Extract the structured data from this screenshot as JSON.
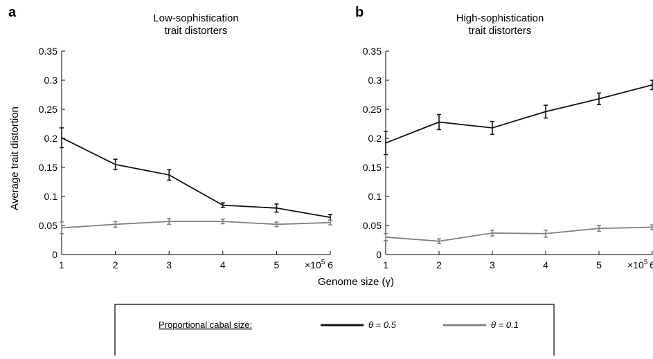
{
  "figure": {
    "ylabel": "Average trait distortion",
    "xlabel": "Genome size (γ)",
    "x_multiplier_base": "×10",
    "x_multiplier_exp": "5",
    "legend": {
      "title": "Proportional cabal size:",
      "entries": [
        {
          "label": "θ = 0.5",
          "color": "#111111"
        },
        {
          "label": "θ = 0.1",
          "color": "#808080"
        }
      ]
    }
  },
  "chart_data": [
    {
      "panel": "a",
      "type": "line",
      "title_lines": [
        "Low-sophistication",
        "trait distorters"
      ],
      "x": [
        1,
        2,
        3,
        4,
        5,
        6
      ],
      "xlim": [
        1,
        6
      ],
      "ylim": [
        0,
        0.35
      ],
      "xticks": [
        "1",
        "2",
        "3",
        "4",
        "5",
        "6"
      ],
      "yticks": [
        "0",
        "0.05",
        "0.1",
        "0.15",
        "0.2",
        "0.25",
        "0.3",
        "0.35"
      ],
      "ytick_values": [
        0,
        0.05,
        0.1,
        0.15,
        0.2,
        0.25,
        0.3,
        0.35
      ],
      "grid": false,
      "series": [
        {
          "name": "θ = 0.5",
          "color": "#111111",
          "values": [
            0.201,
            0.155,
            0.137,
            0.085,
            0.08,
            0.064
          ],
          "err": [
            0.017,
            0.009,
            0.009,
            0.004,
            0.007,
            0.005
          ]
        },
        {
          "name": "θ = 0.1",
          "color": "#808080",
          "values": [
            0.046,
            0.052,
            0.057,
            0.057,
            0.052,
            0.055
          ],
          "err": [
            0.01,
            0.005,
            0.005,
            0.004,
            0.004,
            0.004
          ]
        }
      ]
    },
    {
      "panel": "b",
      "type": "line",
      "title_lines": [
        "High-sophistication",
        "trait distorters"
      ],
      "x": [
        1,
        2,
        3,
        4,
        5,
        6
      ],
      "xlim": [
        1,
        6
      ],
      "ylim": [
        0,
        0.35
      ],
      "xticks": [
        "1",
        "2",
        "3",
        "4",
        "5",
        "6"
      ],
      "yticks": [
        "0",
        "0.05",
        "0.1",
        "0.15",
        "0.2",
        "0.25",
        "0.3",
        "0.35"
      ],
      "ytick_values": [
        0,
        0.05,
        0.1,
        0.15,
        0.2,
        0.25,
        0.3,
        0.35
      ],
      "grid": false,
      "series": [
        {
          "name": "θ = 0.5",
          "color": "#111111",
          "values": [
            0.192,
            0.228,
            0.218,
            0.246,
            0.268,
            0.292
          ],
          "err": [
            0.02,
            0.013,
            0.011,
            0.011,
            0.01,
            0.008
          ]
        },
        {
          "name": "θ = 0.1",
          "color": "#808080",
          "values": [
            0.03,
            0.023,
            0.037,
            0.036,
            0.045,
            0.047
          ],
          "err": [
            0.006,
            0.004,
            0.005,
            0.006,
            0.005,
            0.004
          ]
        }
      ]
    }
  ]
}
